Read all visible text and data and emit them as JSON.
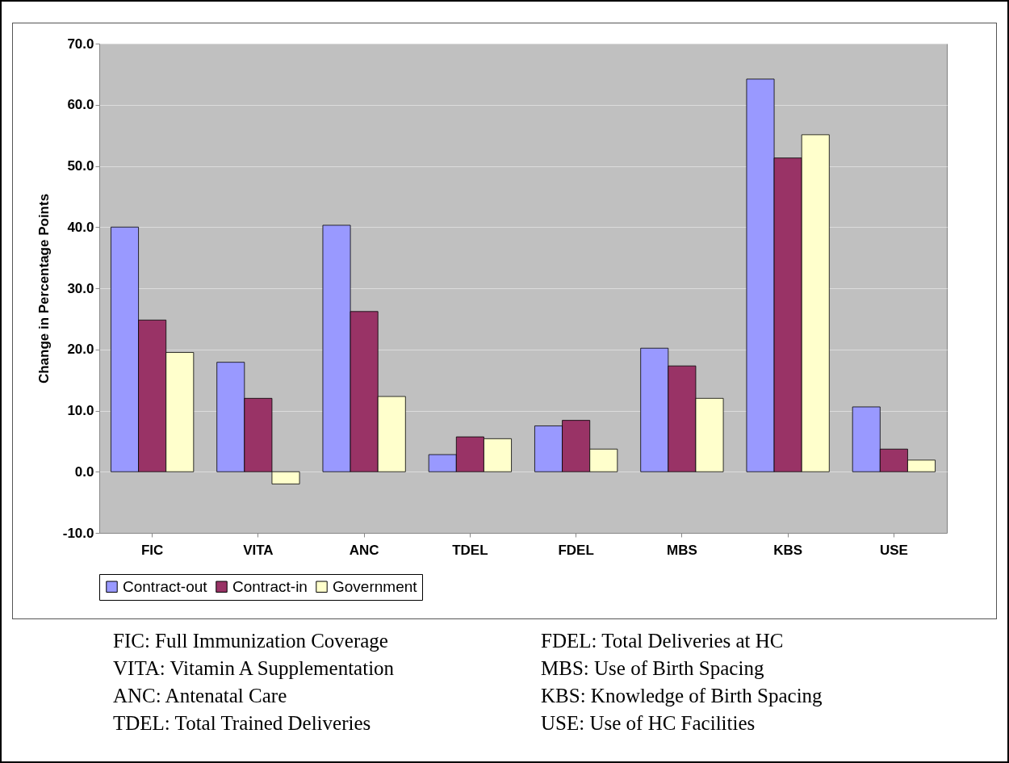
{
  "chart_data": {
    "type": "bar",
    "ylabel": "Change in Percentage Points",
    "categories": [
      "FIC",
      "VITA",
      "ANC",
      "TDEL",
      "FDEL",
      "MBS",
      "KBS",
      "USE"
    ],
    "series": [
      {
        "name": "Contract-out",
        "color": "#9999ff",
        "values": [
          40.0,
          17.9,
          40.3,
          2.8,
          7.5,
          20.2,
          64.2,
          10.6
        ]
      },
      {
        "name": "Contract-in",
        "color": "#993366",
        "values": [
          24.8,
          12.0,
          26.2,
          5.7,
          8.4,
          17.3,
          51.3,
          3.7
        ]
      },
      {
        "name": "Government",
        "color": "#ffffcc",
        "values": [
          19.5,
          -2.0,
          12.3,
          5.4,
          3.7,
          12.0,
          55.1,
          1.9
        ]
      }
    ],
    "ylim": [
      -10,
      70
    ],
    "yticks": [
      {
        "value": -10,
        "label": "-10.0"
      },
      {
        "value": 0,
        "label": "0.0"
      },
      {
        "value": 10,
        "label": "10.0"
      },
      {
        "value": 20,
        "label": "20.0"
      },
      {
        "value": 30,
        "label": "30.0"
      },
      {
        "value": 40,
        "label": "40.0"
      },
      {
        "value": 50,
        "label": "50.0"
      },
      {
        "value": 60,
        "label": "60.0"
      },
      {
        "value": 70,
        "label": "70.0"
      }
    ],
    "grid": "y",
    "legend": "bottom",
    "annotations": [
      "FIC: Full Immunization Coverage",
      "VITA: Vitamin A Supplementation",
      "ANC: Antenatal Care",
      "TDEL: Total Trained Deliveries",
      "FDEL: Total Deliveries at HC",
      "MBS: Use of Birth Spacing",
      "KBS: Knowledge of Birth Spacing",
      "USE: Use of HC Facilities"
    ]
  }
}
